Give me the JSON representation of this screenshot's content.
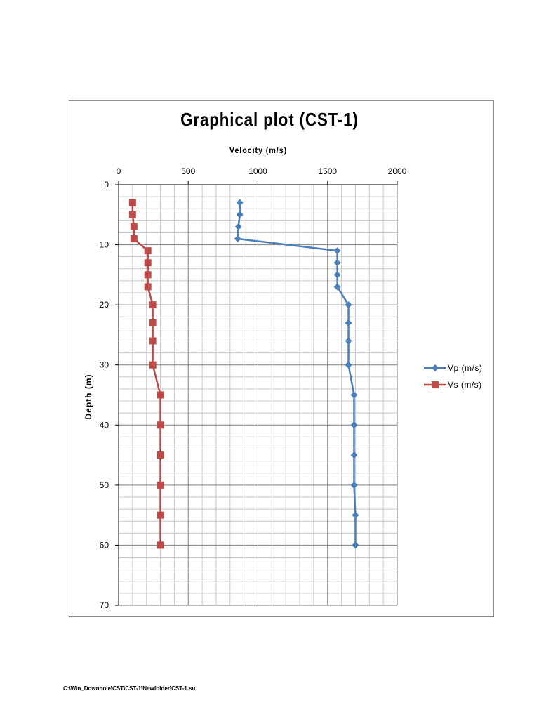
{
  "chart_data": {
    "type": "scatter",
    "title": "Graphical plot (CST-1)",
    "xlabel": "Velocity (m/s)",
    "ylabel": "Depth (m)",
    "xlim": [
      0,
      2000
    ],
    "ylim": [
      0,
      70
    ],
    "x_axis_position": "top",
    "y_axis_inverted": true,
    "x_major_ticks": [
      0,
      500,
      1000,
      1500,
      2000
    ],
    "x_minor_step": 100,
    "y_major_ticks": [
      0,
      10,
      20,
      30,
      40,
      50,
      60,
      70
    ],
    "y_minor_step": 2,
    "grid": true,
    "legend_position": "right",
    "series": [
      {
        "name": "Vp (m/s)",
        "color": "#4a7ebb",
        "marker": "diamond",
        "points": [
          {
            "x": 870,
            "y": 3
          },
          {
            "x": 870,
            "y": 5
          },
          {
            "x": 860,
            "y": 7
          },
          {
            "x": 855,
            "y": 9
          },
          {
            "x": 1570,
            "y": 11
          },
          {
            "x": 1570,
            "y": 13
          },
          {
            "x": 1570,
            "y": 15
          },
          {
            "x": 1570,
            "y": 17
          },
          {
            "x": 1650,
            "y": 20
          },
          {
            "x": 1650,
            "y": 23
          },
          {
            "x": 1650,
            "y": 26
          },
          {
            "x": 1650,
            "y": 30
          },
          {
            "x": 1690,
            "y": 35
          },
          {
            "x": 1690,
            "y": 40
          },
          {
            "x": 1690,
            "y": 45
          },
          {
            "x": 1690,
            "y": 50
          },
          {
            "x": 1700,
            "y": 55
          },
          {
            "x": 1700,
            "y": 60
          }
        ]
      },
      {
        "name": "Vs (m/s)",
        "color": "#be4b48",
        "marker": "square",
        "points": [
          {
            "x": 100,
            "y": 3
          },
          {
            "x": 100,
            "y": 5
          },
          {
            "x": 110,
            "y": 7
          },
          {
            "x": 110,
            "y": 9
          },
          {
            "x": 210,
            "y": 11
          },
          {
            "x": 210,
            "y": 13
          },
          {
            "x": 210,
            "y": 15
          },
          {
            "x": 210,
            "y": 17
          },
          {
            "x": 245,
            "y": 20
          },
          {
            "x": 245,
            "y": 23
          },
          {
            "x": 245,
            "y": 26
          },
          {
            "x": 245,
            "y": 30
          },
          {
            "x": 300,
            "y": 35
          },
          {
            "x": 300,
            "y": 40
          },
          {
            "x": 300,
            "y": 45
          },
          {
            "x": 300,
            "y": 50
          },
          {
            "x": 300,
            "y": 55
          },
          {
            "x": 300,
            "y": 60
          }
        ]
      }
    ]
  },
  "footer": {
    "file_path": "C:\\Win_Downhole\\CST\\CST-1\\Newfolder\\CST-1.su"
  }
}
